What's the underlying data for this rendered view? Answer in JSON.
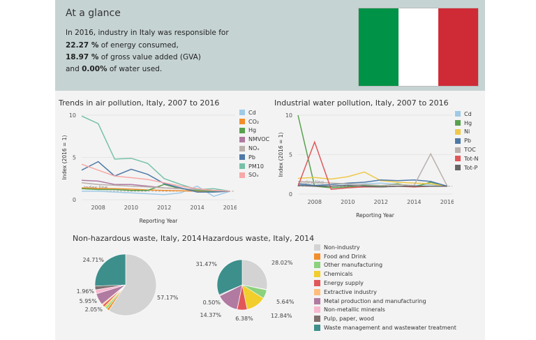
{
  "glance": {
    "title": "At a glance",
    "line1": "In 2016, industry in Italy was responsible for",
    "energy_value": "22.27 %",
    "energy_text": " of energy consumed,",
    "gva_value": "18.97 %",
    "gva_text": " of gross value added (GVA)",
    "water_prefix": "and ",
    "water_value": "0.00%",
    "water_text": " of water used."
  },
  "flag_colors": [
    "#009246",
    "#ffffff",
    "#ce2b37"
  ],
  "chart_data": [
    {
      "id": "air",
      "type": "line",
      "title": "Trends in air pollution, Italy, 2007 to 2016",
      "xlabel": "Reporting Year",
      "ylabel": "Index (2016 = 1)",
      "x": [
        2007,
        2008,
        2009,
        2010,
        2011,
        2012,
        2013,
        2014,
        2015,
        2016
      ],
      "xticks": [
        "2008",
        "2010",
        "2012",
        "2014",
        "2016"
      ],
      "yticks": [
        "0",
        "5",
        "10"
      ],
      "ylim": [
        0,
        10
      ],
      "index_line_label": "Index line",
      "series": [
        {
          "name": "Cd",
          "color": "#9fcae6",
          "values": [
            1.0,
            1.0,
            0.9,
            0.8,
            0.7,
            0.6,
            0.8,
            1.6,
            0.4,
            1.0
          ]
        },
        {
          "name": "CO₂",
          "color": "#f28e2b",
          "values": [
            1.4,
            1.35,
            1.3,
            1.25,
            1.15,
            1.1,
            1.05,
            1.0,
            1.0,
            1.0
          ]
        },
        {
          "name": "Hg",
          "color": "#59a14f",
          "values": [
            1.3,
            1.2,
            1.2,
            1.1,
            1.1,
            1.8,
            1.3,
            1.1,
            1.0,
            1.0
          ]
        },
        {
          "name": "NMVOC",
          "color": "#b07aa1",
          "values": [
            2.3,
            2.2,
            1.8,
            1.8,
            1.6,
            1.4,
            1.3,
            1.2,
            1.1,
            1.0
          ]
        },
        {
          "name": "NOₓ",
          "color": "#bab0ac",
          "values": [
            2.0,
            1.8,
            1.7,
            1.6,
            1.5,
            1.4,
            1.3,
            1.2,
            1.1,
            1.0
          ]
        },
        {
          "name": "Pb",
          "color": "#4e79a7",
          "values": [
            3.5,
            4.5,
            2.8,
            3.6,
            3.0,
            1.9,
            1.4,
            0.9,
            0.9,
            1.0
          ]
        },
        {
          "name": "PM10",
          "color": "#76c1a8",
          "values": [
            9.9,
            9.0,
            4.8,
            4.9,
            4.3,
            2.5,
            1.8,
            1.2,
            1.3,
            1.0
          ]
        },
        {
          "name": "SOₓ",
          "color": "#f7a8a8",
          "values": [
            4.2,
            3.5,
            2.8,
            2.6,
            2.4,
            2.0,
            1.6,
            1.3,
            1.1,
            1.0
          ]
        }
      ]
    },
    {
      "id": "water",
      "type": "line",
      "title": "Industrial water pollution, Italy, 2007 to 2016",
      "xlabel": "Reporting Year",
      "ylabel": "Index (2016 = 1)",
      "x": [
        2007,
        2008,
        2009,
        2010,
        2011,
        2012,
        2013,
        2014,
        2015,
        2016
      ],
      "xticks": [
        "2008",
        "2010",
        "2012",
        "2014",
        "2016"
      ],
      "yticks": [
        "0",
        "5",
        "10"
      ],
      "ylim": [
        0,
        10
      ],
      "index_line_label": "Index line",
      "series": [
        {
          "name": "Cd",
          "color": "#9fcae6",
          "values": [
            1.2,
            1.1,
            1.0,
            1.2,
            1.3,
            1.4,
            1.2,
            1.1,
            1.2,
            1.0
          ]
        },
        {
          "name": "Hg",
          "color": "#59a14f",
          "values": [
            10.0,
            1.0,
            0.8,
            0.9,
            1.1,
            1.0,
            1.3,
            0.9,
            1.5,
            1.0
          ]
        },
        {
          "name": "Ni",
          "color": "#edc948",
          "values": [
            2.0,
            2.1,
            1.9,
            2.2,
            2.8,
            1.7,
            1.5,
            1.4,
            1.3,
            1.0
          ]
        },
        {
          "name": "Pb",
          "color": "#4e79a7",
          "values": [
            1.3,
            1.1,
            1.2,
            1.4,
            1.5,
            1.8,
            1.7,
            1.8,
            1.6,
            1.0
          ]
        },
        {
          "name": "TOC",
          "color": "#bab0ac",
          "values": [
            1.6,
            1.5,
            1.4,
            1.3,
            1.2,
            1.1,
            1.2,
            1.1,
            5.1,
            1.0
          ]
        },
        {
          "name": "Tot-N",
          "color": "#e15759",
          "values": [
            1.0,
            6.6,
            0.6,
            0.8,
            0.9,
            0.9,
            1.0,
            0.9,
            1.0,
            1.0
          ]
        },
        {
          "name": "Tot-P",
          "color": "#666666",
          "values": [
            1.1,
            1.0,
            1.0,
            1.1,
            1.0,
            0.9,
            1.0,
            1.0,
            1.0,
            1.0
          ]
        }
      ]
    },
    {
      "id": "nonhaz",
      "type": "pie",
      "title": "Non-hazardous waste, Italy, 2014",
      "categories": [
        "Non-industry",
        "Food and Drink",
        "Other manufacturing",
        "Chemicals",
        "Energy supply",
        "Extractive industry",
        "Metal production and manufacturing",
        "Non-metallic minerals",
        "Pulp, paper, wood",
        "Waste management and wastewater treatment"
      ],
      "values": [
        57.17,
        1.2,
        1.0,
        0.8,
        1.1,
        0.62,
        5.95,
        2.05,
        1.96,
        24.71
      ],
      "labels": [
        "57.17%",
        "",
        "",
        "",
        "",
        "",
        "5.95%",
        "2.05%",
        "1.96%",
        "24.71%"
      ]
    },
    {
      "id": "haz",
      "type": "pie",
      "title": "Hazardous waste, Italy, 2014",
      "categories": [
        "Non-industry",
        "Food and Drink",
        "Other manufacturing",
        "Chemicals",
        "Energy supply",
        "Extractive industry",
        "Metal production and manufacturing",
        "Non-metallic minerals",
        "Pulp, paper, wood",
        "Waste management and wastewater treatment"
      ],
      "values": [
        28.02,
        0.3,
        5.64,
        12.84,
        6.38,
        0.1,
        14.37,
        0.35,
        0.5,
        31.47
      ],
      "labels": [
        "28.02%",
        "",
        "5.64%",
        "12.84%",
        "6.38%",
        "",
        "14.37%",
        "",
        "0.50%",
        "31.47%"
      ]
    }
  ],
  "pie_legend": [
    {
      "label": "Non-industry",
      "color": "#d3d3d3"
    },
    {
      "label": "Food and Drink",
      "color": "#f28e2b"
    },
    {
      "label": "Other manufacturing",
      "color": "#8cd17d"
    },
    {
      "label": "Chemicals",
      "color": "#f1ce2b"
    },
    {
      "label": "Energy supply",
      "color": "#e15759"
    },
    {
      "label": "Extractive industry",
      "color": "#ffbe7d"
    },
    {
      "label": "Metal production and manufacturing",
      "color": "#b07aa1"
    },
    {
      "label": "Non-metallic minerals",
      "color": "#f7b8d0"
    },
    {
      "label": "Pulp, paper, wood",
      "color": "#7f6f6f"
    },
    {
      "label": "Waste management and wastewater treatment",
      "color": "#3d8f8c"
    }
  ]
}
